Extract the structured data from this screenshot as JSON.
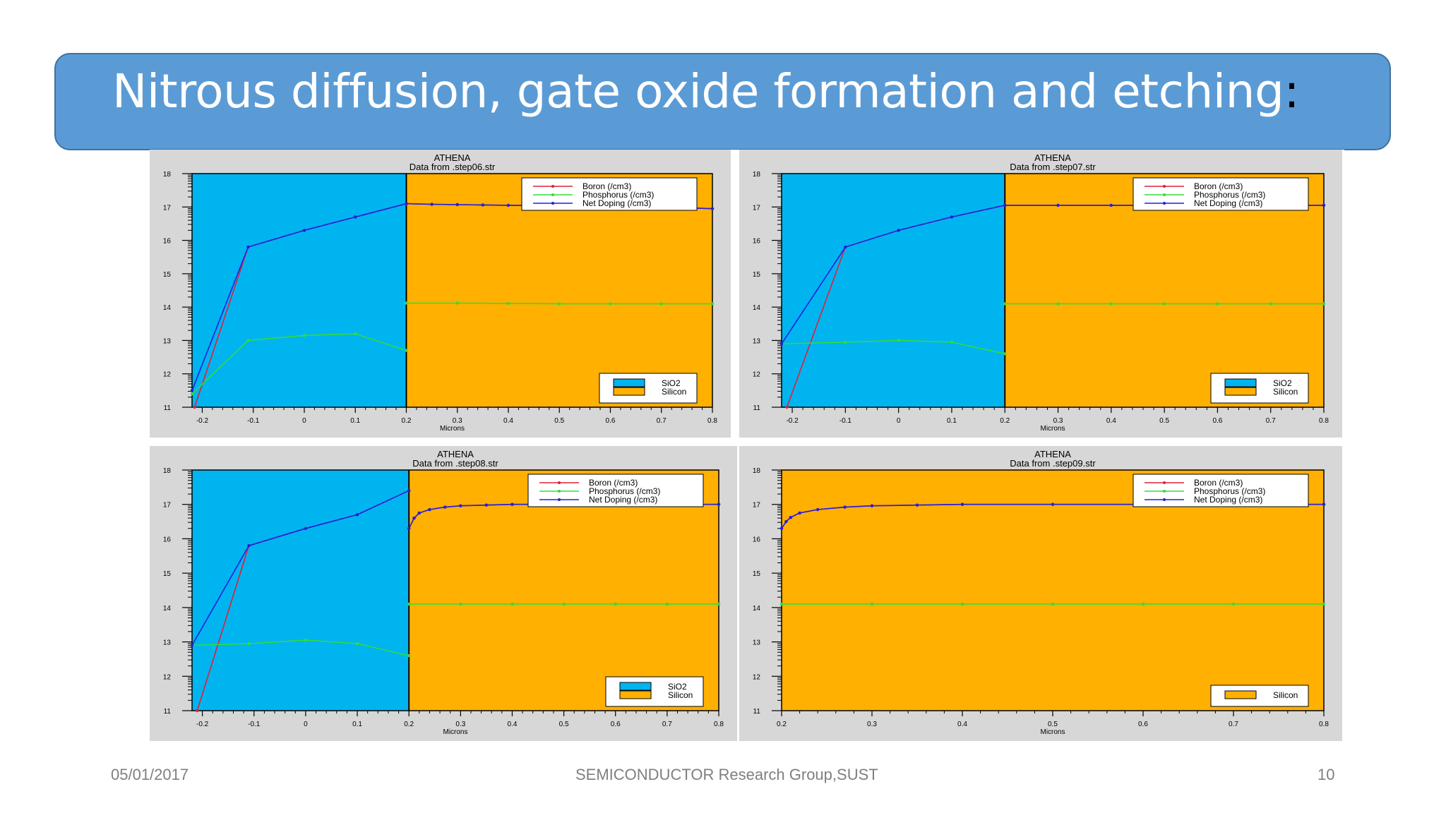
{
  "slide": {
    "title": "Nitrous diffusion, gate oxide formation and etching",
    "title_suffix": ":",
    "footer_date": "05/01/2017",
    "footer_center": "SEMICONDUCTOR Research Group,SUST",
    "footer_page": "10"
  },
  "colors": {
    "title_bar": "#5b9bd5",
    "sio2": "#00b4f0",
    "silicon": "#ffb000",
    "boron": "#e0203a",
    "phosphorus": "#33dd33",
    "net_doping": "#2020e0"
  },
  "chart_data": [
    {
      "type": "line",
      "title": "ATHENA",
      "subtitle": "Data from .step06.str",
      "xlabel": "Microns",
      "xlim": [
        -0.22,
        0.8
      ],
      "ylim": [
        11,
        18
      ],
      "xticks": [
        "-0.2",
        "-0.1",
        "0",
        "0.1",
        "0.2",
        "0.3",
        "0.4",
        "0.5",
        "0.6",
        "0.7",
        "0.8"
      ],
      "xtick_values": [
        -0.2,
        -0.1,
        0,
        0.1,
        0.2,
        0.3,
        0.4,
        0.5,
        0.6,
        0.7,
        0.8
      ],
      "yticks": [
        "11",
        "12",
        "13",
        "14",
        "15",
        "16",
        "17",
        "18"
      ],
      "regions": [
        {
          "material": "SiO2",
          "from": -0.22,
          "to": 0.2
        },
        {
          "material": "Silicon",
          "from": 0.2,
          "to": 0.8
        }
      ],
      "legend_materials": [
        "SiO2",
        "Silicon"
      ],
      "series": [
        {
          "name": "Boron (/cm3)",
          "segments": [
            {
              "x": [
                -0.215,
                -0.11,
                0,
                0.1,
                0.2
              ],
              "y": [
                11.0,
                15.8,
                16.3,
                16.7,
                17.1
              ]
            },
            {
              "x": [
                0.2,
                0.25,
                0.3,
                0.35,
                0.4,
                0.5,
                0.6,
                0.7,
                0.8
              ],
              "y": [
                17.1,
                17.08,
                17.07,
                17.06,
                17.05,
                17.04,
                17.02,
                17.0,
                16.95
              ]
            }
          ]
        },
        {
          "name": "Phosphorus (/cm3)",
          "segments": [
            {
              "x": [
                -0.22,
                -0.11,
                0,
                0.1,
                0.2
              ],
              "y": [
                11.4,
                13.0,
                13.15,
                13.2,
                12.7
              ]
            },
            {
              "x": [
                0.2,
                0.3,
                0.4,
                0.5,
                0.6,
                0.7,
                0.8
              ],
              "y": [
                14.12,
                14.12,
                14.11,
                14.1,
                14.1,
                14.1,
                14.1
              ]
            }
          ]
        },
        {
          "name": "Net Doping (/cm3)",
          "segments": [
            {
              "x": [
                -0.22,
                -0.11,
                0,
                0.1,
                0.2
              ],
              "y": [
                11.5,
                15.8,
                16.3,
                16.7,
                17.1
              ]
            },
            {
              "x": [
                0.2,
                0.25,
                0.3,
                0.35,
                0.4,
                0.5,
                0.6,
                0.7,
                0.8
              ],
              "y": [
                17.1,
                17.08,
                17.07,
                17.06,
                17.05,
                17.04,
                17.02,
                17.0,
                16.95
              ]
            }
          ]
        }
      ]
    },
    {
      "type": "line",
      "title": "ATHENA",
      "subtitle": "Data from .step07.str",
      "xlabel": "Microns",
      "xlim": [
        -0.22,
        0.8
      ],
      "ylim": [
        11,
        18
      ],
      "xticks": [
        "-0.2",
        "-0.1",
        "0",
        "0.1",
        "0.2",
        "0.3",
        "0.4",
        "0.5",
        "0.6",
        "0.7",
        "0.8"
      ],
      "xtick_values": [
        -0.2,
        -0.1,
        0,
        0.1,
        0.2,
        0.3,
        0.4,
        0.5,
        0.6,
        0.7,
        0.8
      ],
      "yticks": [
        "11",
        "12",
        "13",
        "14",
        "15",
        "16",
        "17",
        "18"
      ],
      "regions": [
        {
          "material": "SiO2",
          "from": -0.22,
          "to": 0.2
        },
        {
          "material": "Silicon",
          "from": 0.2,
          "to": 0.8
        }
      ],
      "legend_materials": [
        "SiO2",
        "Silicon"
      ],
      "series": [
        {
          "name": "Boron (/cm3)",
          "segments": [
            {
              "x": [
                -0.21,
                -0.1,
                0,
                0.1,
                0.2
              ],
              "y": [
                11.0,
                15.8,
                16.3,
                16.7,
                17.05
              ]
            },
            {
              "x": [
                0.2,
                0.3,
                0.4,
                0.5,
                0.6,
                0.7,
                0.8
              ],
              "y": [
                17.05,
                17.05,
                17.05,
                17.05,
                17.05,
                17.05,
                17.05
              ]
            }
          ]
        },
        {
          "name": "Phosphorus (/cm3)",
          "segments": [
            {
              "x": [
                -0.22,
                -0.1,
                0,
                0.1,
                0.2
              ],
              "y": [
                12.9,
                12.95,
                13.0,
                12.95,
                12.6
              ]
            },
            {
              "x": [
                0.2,
                0.3,
                0.4,
                0.5,
                0.6,
                0.7,
                0.8
              ],
              "y": [
                14.1,
                14.1,
                14.1,
                14.1,
                14.1,
                14.1,
                14.1
              ]
            }
          ]
        },
        {
          "name": "Net Doping (/cm3)",
          "segments": [
            {
              "x": [
                -0.22,
                -0.1,
                0,
                0.1,
                0.2
              ],
              "y": [
                12.9,
                15.8,
                16.3,
                16.7,
                17.05
              ]
            },
            {
              "x": [
                0.2,
                0.3,
                0.4,
                0.5,
                0.6,
                0.7,
                0.8
              ],
              "y": [
                17.05,
                17.05,
                17.05,
                17.05,
                17.05,
                17.05,
                17.05
              ]
            }
          ]
        }
      ]
    },
    {
      "type": "line",
      "title": "ATHENA",
      "subtitle": "Data from .step08.str",
      "xlabel": "Microns",
      "xlim": [
        -0.22,
        0.8
      ],
      "ylim": [
        11,
        18
      ],
      "xticks": [
        "-0.2",
        "-0.1",
        "0",
        "0.1",
        "0.2",
        "0.3",
        "0.4",
        "0.5",
        "0.6",
        "0.7",
        "0.8"
      ],
      "xtick_values": [
        -0.2,
        -0.1,
        0,
        0.1,
        0.2,
        0.3,
        0.4,
        0.5,
        0.6,
        0.7,
        0.8
      ],
      "yticks": [
        "11",
        "12",
        "13",
        "14",
        "15",
        "16",
        "17",
        "18"
      ],
      "regions": [
        {
          "material": "SiO2",
          "from": -0.22,
          "to": 0.2
        },
        {
          "material": "Silicon",
          "from": 0.2,
          "to": 0.8
        }
      ],
      "legend_materials": [
        "SiO2",
        "Silicon"
      ],
      "series": [
        {
          "name": "Boron (/cm3)",
          "segments": [
            {
              "x": [
                -0.21,
                -0.11,
                0,
                0.1,
                0.2
              ],
              "y": [
                11.0,
                15.8,
                16.3,
                16.7,
                17.4
              ]
            },
            {
              "x": [
                0.2,
                0.21,
                0.22,
                0.24,
                0.27,
                0.3,
                0.35,
                0.4,
                0.5,
                0.6,
                0.7,
                0.8
              ],
              "y": [
                16.3,
                16.6,
                16.75,
                16.85,
                16.92,
                16.96,
                16.98,
                17.0,
                17.0,
                17.0,
                17.0,
                17.0
              ]
            }
          ]
        },
        {
          "name": "Phosphorus (/cm3)",
          "segments": [
            {
              "x": [
                -0.22,
                -0.11,
                0,
                0.1,
                0.2
              ],
              "y": [
                12.9,
                12.95,
                13.05,
                12.95,
                12.6
              ]
            },
            {
              "x": [
                0.2,
                0.3,
                0.4,
                0.5,
                0.6,
                0.7,
                0.8
              ],
              "y": [
                14.1,
                14.1,
                14.1,
                14.1,
                14.1,
                14.1,
                14.1
              ]
            }
          ]
        },
        {
          "name": "Net Doping (/cm3)",
          "segments": [
            {
              "x": [
                -0.22,
                -0.11,
                0,
                0.1,
                0.2
              ],
              "y": [
                12.9,
                15.8,
                16.3,
                16.7,
                17.4
              ]
            },
            {
              "x": [
                0.2,
                0.21,
                0.22,
                0.24,
                0.27,
                0.3,
                0.35,
                0.4,
                0.5,
                0.6,
                0.7,
                0.8
              ],
              "y": [
                16.3,
                16.6,
                16.75,
                16.85,
                16.92,
                16.96,
                16.98,
                17.0,
                17.0,
                17.0,
                17.0,
                17.0
              ]
            }
          ]
        }
      ]
    },
    {
      "type": "line",
      "title": "ATHENA",
      "subtitle": "Data from .step09.str",
      "xlabel": "Microns",
      "xlim": [
        0.2,
        0.8
      ],
      "ylim": [
        11,
        18
      ],
      "xticks": [
        "0.2",
        "0.3",
        "0.4",
        "0.5",
        "0.6",
        "0.7",
        "0.8"
      ],
      "xtick_values": [
        0.2,
        0.3,
        0.4,
        0.5,
        0.6,
        0.7,
        0.8
      ],
      "yticks": [
        "11",
        "12",
        "13",
        "14",
        "15",
        "16",
        "17",
        "18"
      ],
      "regions": [
        {
          "material": "Silicon",
          "from": 0.2,
          "to": 0.8
        }
      ],
      "legend_materials": [
        "Silicon"
      ],
      "series": [
        {
          "name": "Boron (/cm3)",
          "segments": [
            {
              "x": [
                0.2,
                0.205,
                0.21,
                0.22,
                0.24,
                0.27,
                0.3,
                0.35,
                0.4,
                0.5,
                0.6,
                0.7,
                0.8
              ],
              "y": [
                16.3,
                16.5,
                16.62,
                16.75,
                16.85,
                16.92,
                16.96,
                16.98,
                17.0,
                17.0,
                17.0,
                17.0,
                17.0
              ]
            }
          ]
        },
        {
          "name": "Phosphorus (/cm3)",
          "segments": [
            {
              "x": [
                0.2,
                0.3,
                0.4,
                0.5,
                0.6,
                0.7,
                0.8
              ],
              "y": [
                14.1,
                14.1,
                14.1,
                14.1,
                14.1,
                14.1,
                14.1
              ]
            }
          ]
        },
        {
          "name": "Net Doping (/cm3)",
          "segments": [
            {
              "x": [
                0.2,
                0.205,
                0.21,
                0.22,
                0.24,
                0.27,
                0.3,
                0.35,
                0.4,
                0.5,
                0.6,
                0.7,
                0.8
              ],
              "y": [
                16.3,
                16.5,
                16.62,
                16.75,
                16.85,
                16.92,
                16.96,
                16.98,
                17.0,
                17.0,
                17.0,
                17.0,
                17.0
              ]
            }
          ]
        }
      ]
    }
  ]
}
